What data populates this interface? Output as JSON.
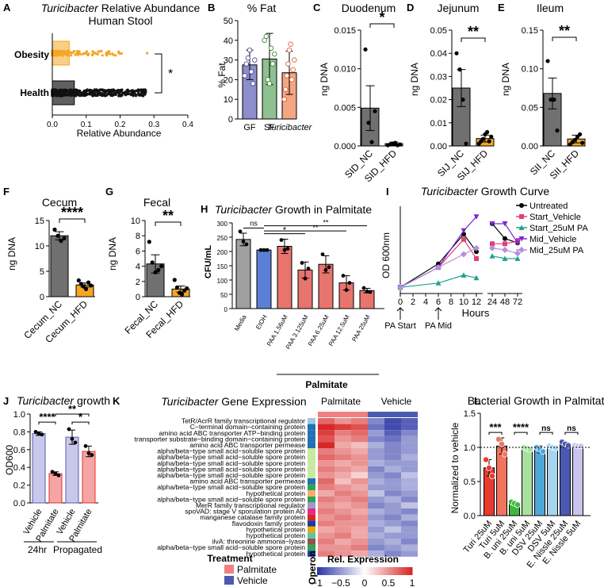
{
  "chart_data": [
    {
      "panel": "A",
      "type": "scatter",
      "title_italic": "Turicibacter",
      "title_rest": " Relative Abundance",
      "subtitle": "Human Stool",
      "categories": [
        "Obesity",
        "Health"
      ],
      "xlabel": "Relative Abundance",
      "xticks": [
        "0.0",
        "0.1",
        "0.2",
        "0.3",
        "0.4"
      ],
      "xlim": [
        0,
        0.4
      ],
      "box_upper": [
        0.05,
        0.065
      ],
      "sig": "*",
      "colors": [
        "#F5A623",
        "#1a1a1a"
      ]
    },
    {
      "panel": "B",
      "type": "bar",
      "title": "% Fat",
      "categories": [
        "GF",
        "SF",
        "Turicibacter"
      ],
      "values": [
        27.5,
        30.5,
        23.5
      ],
      "errors": [
        7.5,
        13,
        11
      ],
      "points": [
        [
          22,
          28,
          31,
          35,
          24,
          18,
          30
        ],
        [
          40,
          42,
          20,
          18,
          36,
          28,
          33
        ],
        [
          10,
          15,
          22,
          28,
          35,
          38,
          20,
          25,
          30
        ]
      ],
      "ylabel": "% Fat",
      "yticks": [
        "0",
        "10",
        "20",
        "30",
        "40",
        "50"
      ],
      "ylim": [
        0,
        50
      ],
      "colors": [
        "#8E8ECC",
        "#8FC08F",
        "#F4A582"
      ]
    },
    {
      "panel": "C",
      "type": "bar",
      "title": "Duodenum",
      "categories": [
        "SID_NC",
        "SID_HFD"
      ],
      "values": [
        0.0049,
        0.0003
      ],
      "errors": [
        0.0029,
        0.0002
      ],
      "points": [
        [
          0.0125,
          0.003,
          0.0005,
          0.0045
        ],
        [
          0.0001,
          0.0002,
          0.0003,
          0.0004,
          0.0001,
          0.0002
        ]
      ],
      "ylabel": "ng DNA",
      "yticks": [
        "0.000",
        "0.005",
        "0.010",
        "0.015"
      ],
      "ylim": [
        0,
        0.015
      ],
      "sig": "*",
      "colors": [
        "#707070",
        "#F5A623"
      ]
    },
    {
      "panel": "D",
      "type": "bar",
      "title": "Jejunum",
      "categories": [
        "SIJ_NC",
        "SIJ_HFD"
      ],
      "values": [
        0.025,
        0.0032
      ],
      "errors": [
        0.008,
        0.0015
      ],
      "points": [
        [
          0.04,
          0.033,
          0.02,
          0.001
        ],
        [
          0.001,
          0.002,
          0.003,
          0.005,
          0.006,
          0.002,
          0.004
        ]
      ],
      "ylabel": "ng DNA",
      "yticks": [
        "0.00",
        "0.01",
        "0.02",
        "0.03",
        "0.04",
        "0.05"
      ],
      "ylim": [
        0,
        0.05
      ],
      "sig": "**",
      "colors": [
        "#707070",
        "#F5A623"
      ]
    },
    {
      "panel": "E",
      "type": "bar",
      "title": "Ileum",
      "categories": [
        "SII_NC",
        "SII_HFD"
      ],
      "values": [
        0.068,
        0.009
      ],
      "errors": [
        0.02,
        0.005
      ],
      "points": [
        [
          0.11,
          0.06,
          0.06,
          0.02
        ],
        [
          0.002,
          0.005,
          0.008,
          0.012,
          0.015,
          0.004
        ]
      ],
      "ylabel": "ng DNA",
      "yticks": [
        "0.00",
        "0.05",
        "0.10",
        "0.15"
      ],
      "ylim": [
        0,
        0.15
      ],
      "sig": "**",
      "colors": [
        "#707070",
        "#F5A623"
      ]
    },
    {
      "panel": "F",
      "type": "bar",
      "title": "Cecum",
      "categories": [
        "Cecum_NC",
        "Cecum_HFD"
      ],
      "values": [
        12,
        2.3
      ],
      "errors": [
        0.8,
        0.4
      ],
      "points": [
        [
          13.2,
          12,
          11,
          11.5
        ],
        [
          3.2,
          2.5,
          2,
          1.5,
          2.8,
          2.2
        ]
      ],
      "ylabel": "ng DNA",
      "yticks": [
        "0",
        "5",
        "10",
        "15"
      ],
      "ylim": [
        0,
        15
      ],
      "sig": "****",
      "colors": [
        "#707070",
        "#F5A623"
      ]
    },
    {
      "panel": "G",
      "type": "bar",
      "title": "Fecal",
      "categories": [
        "Fecal_NC",
        "Fecal_HFD"
      ],
      "values": [
        4.3,
        1.0
      ],
      "errors": [
        1.2,
        0.4
      ],
      "points": [
        [
          7.2,
          4.5,
          3.2,
          3.5,
          4
        ],
        [
          2.2,
          1.2,
          0.5,
          0.3,
          0.8,
          1.1
        ]
      ],
      "ylabel": "ng DNA",
      "yticks": [
        "0",
        "2",
        "4",
        "6",
        "8",
        "10"
      ],
      "ylim": [
        0,
        10
      ],
      "sig": "**",
      "colors": [
        "#707070",
        "#F5A623"
      ]
    },
    {
      "panel": "H",
      "type": "bar",
      "title_italic": "Turicibacter",
      "title_rest": " Growth in Palmitate",
      "categories": [
        "Media",
        "EtOH",
        "PAA 1.56uM",
        "PAA 3.125uM",
        "PAA 6.25uM",
        "PAA 12.5uM",
        "PAA 25uM"
      ],
      "values": [
        242,
        205,
        218,
        135,
        155,
        90,
        63
      ],
      "errors": [
        22,
        3,
        25,
        28,
        30,
        25,
        8
      ],
      "points": [
        [
          270,
          235,
          225
        ],
        [
          205,
          205,
          205
        ],
        [
          240,
          205,
          210
        ],
        [
          160,
          105,
          140
        ],
        [
          190,
          135,
          145
        ],
        [
          115,
          65,
          90
        ],
        [
          72,
          60,
          58
        ]
      ],
      "ylabel": "CFU/mL",
      "yticks": [
        "0",
        "50",
        "100",
        "150",
        "200",
        "250",
        "300"
      ],
      "ylim": [
        0,
        300
      ],
      "group_label": "Palmitate",
      "sigs": [
        "ns",
        "*",
        "**",
        "**"
      ],
      "colors": [
        "#A0A0A0",
        "#5B7FD6",
        "#E8746E"
      ]
    },
    {
      "panel": "I",
      "type": "line",
      "title_italic": "Turicibacter",
      "title_rest": " Growth Curve",
      "xlabel": "Hours",
      "ylabel": "OD 600nm",
      "xticks": [
        "0",
        "2",
        "4",
        "6",
        "8",
        "10",
        "12",
        "24",
        "48",
        "72"
      ],
      "x": [
        0,
        6,
        10,
        12
      ],
      "series": [
        {
          "name": "Untreated",
          "color": "#000000",
          "x": [
            0,
            6,
            10,
            12
          ],
          "values": [
            0.07,
            0.34,
            0.68,
            0.48
          ]
        },
        {
          "name": "Start_Vehicle",
          "color": "#E0407A",
          "x": [
            0,
            6,
            10,
            12
          ],
          "values": [
            0.07,
            0.3,
            0.62,
            0.4
          ]
        },
        {
          "name": "Start_25uM PA",
          "color": "#20A090",
          "x": [
            0,
            6,
            10,
            12
          ],
          "values": [
            0.07,
            0.12,
            0.21,
            0.18
          ]
        },
        {
          "name": "Mid_Vehicle",
          "color": "#7A2AD0",
          "x": [
            0,
            6,
            10,
            12
          ],
          "values": [
            0.07,
            0.3,
            0.72,
            0.88
          ]
        },
        {
          "name": "Mid_25uM PA",
          "color": "#B68FE0",
          "x": [
            0,
            6,
            10,
            12
          ],
          "values": [
            0.07,
            0.3,
            0.45,
            0.52
          ]
        }
      ],
      "late": [
        [
          0.8,
          0.63,
          0.58
        ],
        [
          0.57,
          0.57,
          0.6
        ],
        [
          0.43,
          0.4,
          0.4
        ],
        [
          0.8,
          0.8,
          0.58
        ],
        [
          0.52,
          0.5,
          0.46
        ]
      ],
      "annotations": [
        "PA Start",
        "PA Mid"
      ]
    },
    {
      "panel": "J",
      "type": "bar",
      "title_italic": "Turicibacter",
      "title_rest": " growth",
      "categories": [
        "Vehicle",
        "Palmitate",
        "Vehicle",
        "Palmitate"
      ],
      "values": [
        0.78,
        0.33,
        0.74,
        0.58
      ],
      "errors": [
        0.02,
        0.02,
        0.08,
        0.06
      ],
      "points": [
        [
          0.8,
          0.78,
          0.77
        ],
        [
          0.35,
          0.33,
          0.31
        ],
        [
          0.83,
          0.72,
          0.68
        ],
        [
          0.64,
          0.56,
          0.54
        ]
      ],
      "ylabel": "OD600",
      "yticks": [
        "0.0",
        "0.2",
        "0.4",
        "0.6",
        "0.8",
        "1.0"
      ],
      "ylim": [
        0,
        1.0
      ],
      "groups": [
        "24hr",
        "Propagated"
      ],
      "sigs": [
        "****",
        "*",
        "**"
      ],
      "colors": [
        "#9A9AD8",
        "#F05A5A"
      ]
    },
    {
      "panel": "K",
      "type": "heatmap",
      "title_italic": "Turicibacter",
      "title_rest": " Gene Expression",
      "columns": [
        "Palmitate",
        "Vehicle"
      ],
      "rows": [
        "TetR/AcrR family transcriptional regulator",
        "C−terminal domain−containing protein",
        "amino acid ABC transporter ATP−binding protein",
        "transporter substrate−binding domain−containing protein",
        "amino acid ABC transporter permease",
        "alpha/beta−type small acid−soluble spore protein",
        "alpha/beta−type small acid−soluble spore protein",
        "alpha/beta−type small acid−soluble spore protein",
        "alpha/beta−type small acid−soluble spore protein",
        "alpha/beta−type small acid−soluble spore protein",
        "amino acid ABC transporter permease",
        "alpha/beta−type small acid−soluble spore protein",
        "hypothetical protein",
        "alpha/beta−type small acid−soluble spore protein",
        "MerR family transcriptional regulator",
        "spoVAD: stage V sporulation protein AD",
        "manganese catalase family protein",
        "flavodoxin family protein",
        "hypothetical protein",
        "hypothetical protein",
        "ilvA: threonine ammonia−lyase",
        "alpha/beta−type small acid−soluble spore protein",
        "hypothetical protein"
      ],
      "values": [
        [
          0.7,
          0.5,
          0.6,
          -0.6,
          -0.9,
          -0.8
        ],
        [
          1.0,
          0.9,
          0.8,
          -0.7,
          -0.9,
          -0.8
        ],
        [
          0.9,
          0.6,
          0.7,
          -0.5,
          -0.8,
          -0.6
        ],
        [
          0.8,
          0.5,
          0.6,
          -0.6,
          -0.7,
          -0.5
        ],
        [
          1.0,
          0.4,
          0.3,
          -0.4,
          -0.6,
          -0.5
        ],
        [
          0.6,
          0.5,
          0.4,
          -0.5,
          -0.6,
          -0.5
        ],
        [
          0.7,
          0.6,
          0.5,
          -0.5,
          -0.6,
          -0.4
        ],
        [
          0.5,
          0.4,
          0.5,
          -0.4,
          -0.5,
          -0.5
        ],
        [
          0.6,
          0.5,
          0.4,
          -0.6,
          -0.4,
          -0.5
        ],
        [
          0.5,
          0.4,
          0.2,
          -0.5,
          -0.6,
          -0.3
        ],
        [
          0.7,
          0.3,
          0.5,
          -0.4,
          -0.5,
          -0.4
        ],
        [
          0.6,
          0.5,
          0.4,
          -0.5,
          -0.5,
          -0.4
        ],
        [
          0.4,
          0.6,
          0.5,
          -0.3,
          -0.6,
          -0.5
        ],
        [
          0.6,
          0.5,
          0.6,
          -0.5,
          -0.4,
          -0.6
        ],
        [
          0.5,
          0.4,
          0.5,
          -0.6,
          -0.5,
          -0.3
        ],
        [
          0.6,
          0.5,
          0.4,
          -0.4,
          -0.5,
          -0.6
        ],
        [
          0.5,
          0.6,
          0.5,
          -0.5,
          -0.6,
          -0.4
        ],
        [
          0.6,
          0.5,
          0.5,
          -0.4,
          -0.5,
          -0.6
        ],
        [
          0.4,
          0.5,
          0.4,
          -0.5,
          -0.3,
          -0.5
        ],
        [
          0.5,
          0.6,
          0.4,
          -0.4,
          -0.5,
          -0.5
        ],
        [
          0.6,
          0.4,
          0.5,
          -0.5,
          -0.4,
          -0.6
        ],
        [
          0.5,
          0.5,
          0.6,
          -0.6,
          -0.5,
          -0.4
        ],
        [
          0.6,
          0.5,
          0.4,
          -0.4,
          -0.6,
          -0.5
        ]
      ],
      "operon_colors": [
        "#9ecae1",
        "#2171b5",
        "#2171b5",
        "#2171b5",
        "#2171b5",
        "#c7e9a0",
        "#c7e9a0",
        "#c7e9a0",
        "#c7e9a0",
        "#c7e9a0",
        "#2171b5",
        "#31a354",
        "#fdae6b",
        "#31a354",
        "#9e9ac8",
        "#e7298a",
        "#d62728",
        "#1f3b99",
        "#e6ab02",
        "#66c2a5",
        "#8c564b",
        "#31a354",
        "#1f3b99"
      ],
      "legend_treatment_title": "Treatment",
      "legend_treatment": [
        "Palmitate",
        "Vehicle"
      ],
      "legend_treatment_colors": [
        "#F08080",
        "#4B5BB0"
      ],
      "colorbar_title": "Rel. Expression",
      "colorbar_ticks": [
        "−1",
        "−0.5",
        "0",
        "0.5",
        "1"
      ],
      "operon_label": "Operon"
    },
    {
      "panel": "L",
      "type": "bar",
      "title": "Bacterial Growth in Palmitate",
      "categories": [
        "Turi 25uM",
        "Turi 5uM",
        "B. uni 25uM",
        "B. uni 5uM",
        "DSV 25uM",
        "DSV 5uM",
        "E. Nissle 25uM",
        "E. Nissle 5uM"
      ],
      "values": [
        0.7,
        1.02,
        0.18,
        0.98,
        0.97,
        1.0,
        1.05,
        1.02
      ],
      "errors": [
        0.12,
        0.12,
        0.02,
        0.02,
        0.05,
        0.02,
        0.03,
        0.01
      ],
      "points": [
        [
          0.82,
          0.7,
          0.58
        ],
        [
          1.12,
          1.05,
          0.9
        ],
        [
          0.2,
          0.18,
          0.16
        ],
        [
          1.0,
          0.98,
          0.97
        ],
        [
          1.0,
          0.97,
          0.94
        ],
        [
          1.02,
          1.0,
          0.99
        ],
        [
          1.08,
          1.05,
          1.03
        ],
        [
          1.03,
          1.02,
          1.02
        ]
      ],
      "ylabel": "Normalized to vehicle",
      "yticks": [
        "0.0",
        "0.5",
        "1.0",
        "1.5"
      ],
      "ylim": [
        0,
        1.5
      ],
      "sigs": [
        "***",
        "****",
        "ns",
        "ns"
      ],
      "colors": [
        "#E83A2E",
        "#F2735E",
        "#3DB83D",
        "#A8E0A0",
        "#4FA8D8",
        "#A7D4EE",
        "#4B58B0",
        "#C9C4EC"
      ]
    }
  ]
}
